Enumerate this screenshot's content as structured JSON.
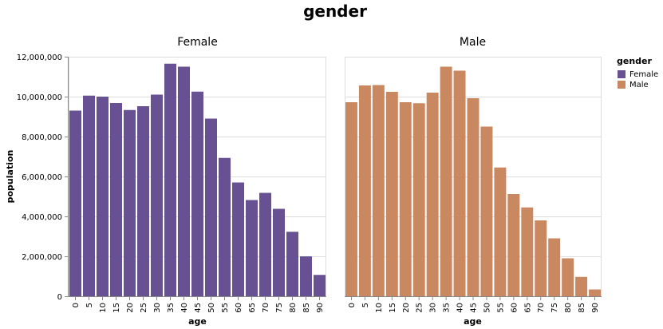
{
  "chart_data": {
    "type": "bar",
    "title": "gender",
    "xlabel": "age",
    "ylabel": "population",
    "ylim": [
      0,
      12000000
    ],
    "yticks": [
      0,
      2000000,
      4000000,
      6000000,
      8000000,
      10000000,
      12000000
    ],
    "ytick_labels": [
      "0",
      "2,000,000",
      "4,000,000",
      "6,000,000",
      "8,000,000",
      "10,000,000",
      "12,000,000"
    ],
    "categories": [
      "0",
      "5",
      "10",
      "15",
      "20",
      "25",
      "30",
      "35",
      "40",
      "45",
      "50",
      "55",
      "60",
      "65",
      "70",
      "75",
      "80",
      "85",
      "90"
    ],
    "grid": true,
    "series": [
      {
        "name": "Female",
        "color": "#675193",
        "values": [
          9300000,
          10050000,
          10000000,
          9680000,
          9330000,
          9520000,
          10100000,
          11650000,
          11500000,
          10250000,
          8900000,
          6930000,
          5700000,
          4820000,
          5180000,
          4380000,
          3230000,
          2000000,
          1070000
        ]
      },
      {
        "name": "Male",
        "color": "#ca8861",
        "values": [
          9720000,
          10560000,
          10580000,
          10240000,
          9720000,
          9670000,
          10200000,
          11500000,
          11300000,
          9920000,
          8500000,
          6450000,
          5120000,
          4450000,
          3800000,
          2900000,
          1900000,
          970000,
          340000
        ]
      }
    ],
    "legend": {
      "title": "gender",
      "placement": "top-right",
      "entries": [
        "Female",
        "Male"
      ]
    }
  }
}
